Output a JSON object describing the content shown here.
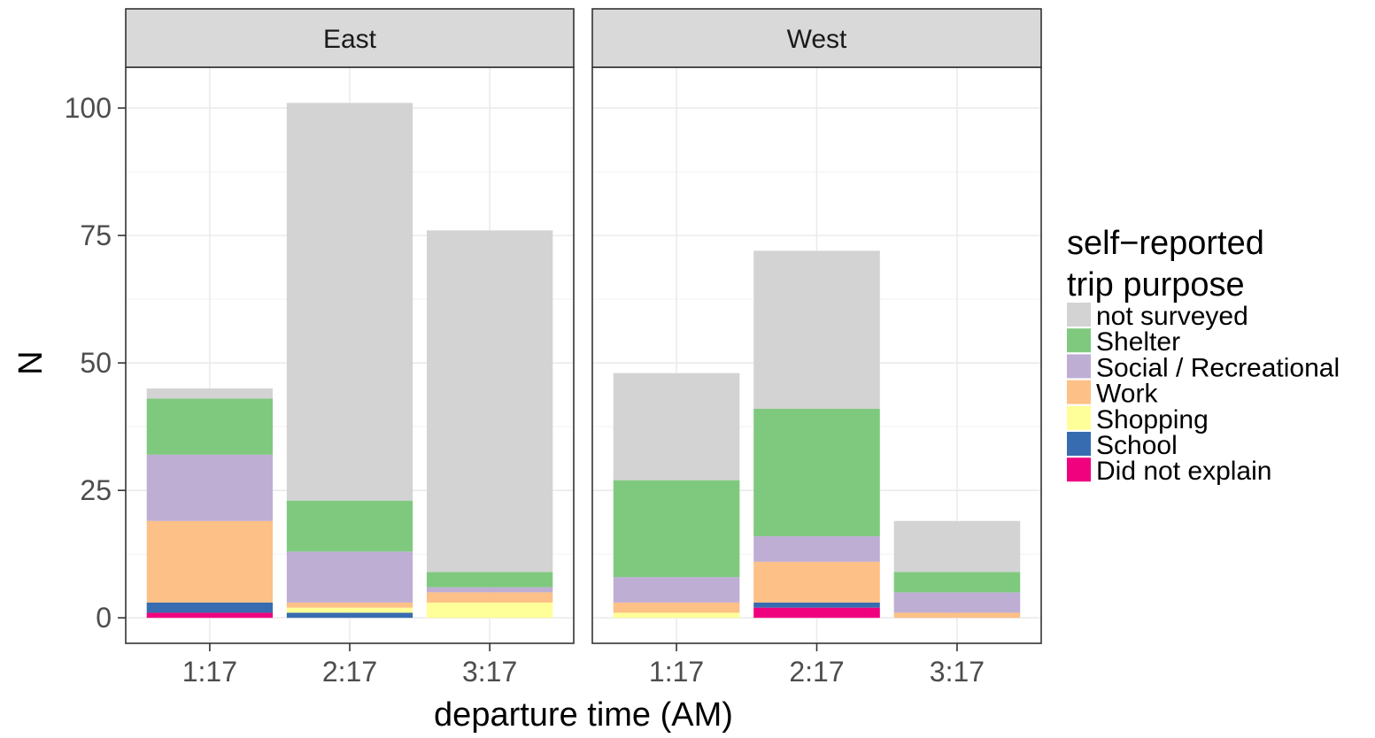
{
  "chart_data": {
    "type": "bar",
    "stacked": true,
    "faceted": true,
    "grid": true,
    "legend_position": "right",
    "xlabel": "departure time (AM)",
    "ylabel": "N",
    "ylim": [
      -5,
      108
    ],
    "yticks": [
      0,
      25,
      50,
      75,
      100
    ],
    "categories": [
      "1:17",
      "2:17",
      "3:17"
    ],
    "legend": {
      "title_lines": [
        "self−reported",
        "trip purpose"
      ]
    },
    "series": [
      {
        "name": "not surveyed",
        "color": "#d3d3d3"
      },
      {
        "name": "Shelter",
        "color": "#7fc97f"
      },
      {
        "name": "Social / Recreational",
        "color": "#beaed4"
      },
      {
        "name": "Work",
        "color": "#fdc086"
      },
      {
        "name": "Shopping",
        "color": "#ffff99"
      },
      {
        "name": "School",
        "color": "#386cb0"
      },
      {
        "name": "Did not explain",
        "color": "#f0027f"
      }
    ],
    "stack_order": [
      "Did not explain",
      "School",
      "Shopping",
      "Work",
      "Social / Recreational",
      "Shelter",
      "not surveyed"
    ],
    "facets": [
      {
        "label": "East",
        "bars": [
          {
            "category": "1:17",
            "values": {
              "Did not explain": 1,
              "School": 2,
              "Shopping": 0,
              "Work": 16,
              "Social / Recreational": 13,
              "Shelter": 11,
              "not surveyed": 2
            }
          },
          {
            "category": "2:17",
            "values": {
              "Did not explain": 0,
              "School": 1,
              "Shopping": 1,
              "Work": 1,
              "Social / Recreational": 10,
              "Shelter": 10,
              "not surveyed": 78
            }
          },
          {
            "category": "3:17",
            "values": {
              "Did not explain": 0,
              "School": 0,
              "Shopping": 3,
              "Work": 2,
              "Social / Recreational": 1,
              "Shelter": 3,
              "not surveyed": 67
            }
          }
        ]
      },
      {
        "label": "West",
        "bars": [
          {
            "category": "1:17",
            "values": {
              "Did not explain": 0,
              "School": 0,
              "Shopping": 1,
              "Work": 2,
              "Social / Recreational": 5,
              "Shelter": 19,
              "not surveyed": 21
            }
          },
          {
            "category": "2:17",
            "values": {
              "Did not explain": 2,
              "School": 1,
              "Shopping": 0,
              "Work": 8,
              "Social / Recreational": 5,
              "Shelter": 25,
              "not surveyed": 31
            }
          },
          {
            "category": "3:17",
            "values": {
              "Did not explain": 0,
              "School": 0,
              "Shopping": 0,
              "Work": 1,
              "Social / Recreational": 4,
              "Shelter": 4,
              "not surveyed": 10
            }
          }
        ]
      }
    ]
  }
}
